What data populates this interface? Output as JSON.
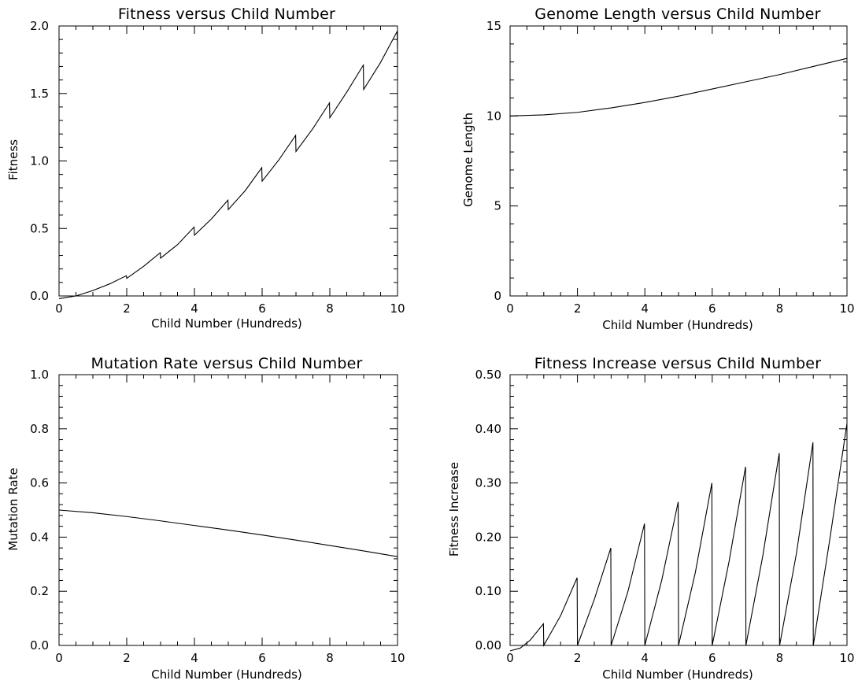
{
  "chart_data": [
    {
      "type": "line",
      "title": "Fitness versus Child Number",
      "xlabel": "Child Number (Hundreds)",
      "ylabel": "Fitness",
      "xlim": [
        0,
        10
      ],
      "ylim": [
        0,
        2.0
      ],
      "xticks": [
        "0",
        "2",
        "4",
        "6",
        "8",
        "10"
      ],
      "yticks": [
        "0.0",
        "0.5",
        "1.0",
        "1.5",
        "2.0"
      ],
      "grid": false,
      "series": [
        {
          "x": [
            0,
            0.5,
            1.0,
            1.5,
            1.99,
            2.0,
            2.5,
            2.99,
            3.0,
            3.5,
            3.99,
            4.0,
            4.5,
            4.99,
            5.0,
            5.5,
            5.99,
            6.0,
            6.5,
            6.99,
            7.0,
            7.5,
            7.99,
            8.0,
            8.5,
            8.99,
            9.0,
            9.5,
            9.99,
            10.0
          ],
          "y": [
            -0.02,
            0.0,
            0.04,
            0.09,
            0.15,
            0.13,
            0.22,
            0.32,
            0.28,
            0.38,
            0.51,
            0.45,
            0.57,
            0.71,
            0.64,
            0.78,
            0.95,
            0.85,
            1.01,
            1.19,
            1.07,
            1.24,
            1.43,
            1.32,
            1.51,
            1.71,
            1.53,
            1.73,
            1.96,
            1.8
          ]
        }
      ]
    },
    {
      "type": "line",
      "title": "Genome Length versus Child Number",
      "xlabel": "Child Number (Hundreds)",
      "ylabel": "Genome Length",
      "xlim": [
        0,
        10
      ],
      "ylim": [
        0,
        15
      ],
      "xticks": [
        "0",
        "2",
        "4",
        "6",
        "8",
        "10"
      ],
      "yticks": [
        "0",
        "5",
        "10",
        "15"
      ],
      "grid": false,
      "series": [
        {
          "x": [
            0,
            1,
            2,
            3,
            4,
            5,
            6,
            7,
            8,
            9,
            10
          ],
          "y": [
            10.0,
            10.06,
            10.2,
            10.45,
            10.75,
            11.1,
            11.5,
            11.9,
            12.3,
            12.75,
            13.2
          ]
        }
      ]
    },
    {
      "type": "line",
      "title": "Mutation Rate versus Child Number",
      "xlabel": "Child Number (Hundreds)",
      "ylabel": "Mutation Rate",
      "xlim": [
        0,
        10
      ],
      "ylim": [
        0,
        1.0
      ],
      "xticks": [
        "0",
        "2",
        "4",
        "6",
        "8",
        "10"
      ],
      "yticks": [
        "0.0",
        "0.2",
        "0.4",
        "0.6",
        "0.8",
        "1.0"
      ],
      "grid": false,
      "series": [
        {
          "x": [
            0,
            1,
            2,
            3,
            4,
            5,
            6,
            7,
            8,
            9,
            10
          ],
          "y": [
            0.5,
            0.49,
            0.476,
            0.46,
            0.443,
            0.426,
            0.408,
            0.389,
            0.369,
            0.349,
            0.328
          ]
        }
      ]
    },
    {
      "type": "line",
      "title": "Fitness Increase versus Child Number",
      "xlabel": "Child Number (Hundreds)",
      "ylabel": "Fitness Increase",
      "xlim": [
        0,
        10
      ],
      "ylim": [
        0,
        0.5
      ],
      "xticks": [
        "0",
        "2",
        "4",
        "6",
        "8",
        "10"
      ],
      "yticks": [
        "0.00",
        "0.10",
        "0.20",
        "0.30",
        "0.40",
        "0.50"
      ],
      "grid": false,
      "series": [
        {
          "x": [
            0,
            0.3,
            0.6,
            0.99,
            1.0,
            1.5,
            1.99,
            2.0,
            2.5,
            2.99,
            3.0,
            3.5,
            3.99,
            4.0,
            4.5,
            4.99,
            5.0,
            5.5,
            5.99,
            6.0,
            6.5,
            6.99,
            7.0,
            7.5,
            7.99,
            8.0,
            8.5,
            8.99,
            9.0,
            9.5,
            10.0
          ],
          "y": [
            -0.01,
            -0.005,
            0.01,
            0.04,
            0.0,
            0.055,
            0.125,
            0.0,
            0.085,
            0.18,
            0.0,
            0.1,
            0.225,
            0.0,
            0.12,
            0.265,
            0.0,
            0.135,
            0.3,
            0.0,
            0.155,
            0.33,
            0.0,
            0.165,
            0.355,
            0.0,
            0.17,
            0.375,
            0.0,
            0.2,
            0.41
          ]
        }
      ]
    }
  ]
}
